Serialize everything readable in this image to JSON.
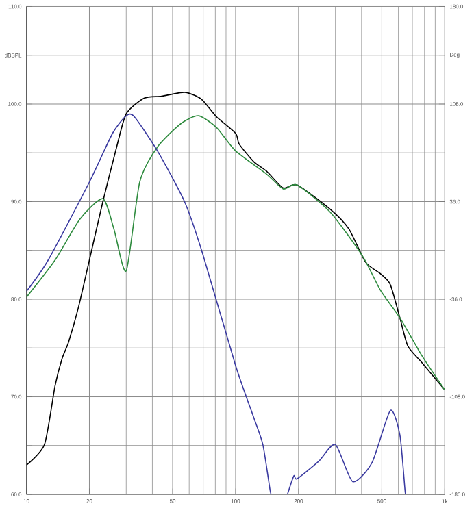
{
  "chart_data": {
    "type": "line",
    "log": "x",
    "grid": true,
    "line_style": "solid",
    "marker": "none",
    "xlim": [
      10,
      1000
    ],
    "xticks": [
      10,
      20,
      50,
      100,
      200,
      500,
      {
        "value": 1000,
        "label": "1k"
      }
    ],
    "ylim": [
      60,
      110
    ],
    "yticks": [
      {
        "value": 60,
        "label": "60.0"
      },
      {
        "value": 65,
        "label": null
      },
      {
        "value": 70,
        "label": "70.0"
      },
      {
        "value": 75,
        "label": null
      },
      {
        "value": 80,
        "label": "80.0"
      },
      {
        "value": 85,
        "label": null
      },
      {
        "value": 90,
        "label": "90.0"
      },
      {
        "value": 95,
        "label": null
      },
      {
        "value": 100,
        "label": "100.0"
      },
      {
        "value": 105,
        "label": "dBSPL"
      },
      {
        "value": 110,
        "label": "110.0"
      }
    ],
    "y2lim": [
      -180,
      180
    ],
    "y2ticks": [
      {
        "value": -180,
        "label": "-180.0"
      },
      {
        "value": -108,
        "label": "-108.0"
      },
      {
        "value": -36,
        "label": "-36.0"
      },
      {
        "value": 36,
        "label": "36.0"
      },
      {
        "value": 108,
        "label": "108.0"
      },
      {
        "value": 144,
        "label": "Deg"
      },
      {
        "value": 180,
        "label": "180.0"
      }
    ],
    "series": [
      {
        "color": "#000000",
        "x": [
          10,
          12.2,
          13.7,
          14.8,
          15.9,
          17.7,
          20,
          23.2,
          27,
          30,
          36.5,
          44.3,
          57,
          68.6,
          81,
          100,
          104,
          122,
          141,
          169,
          197,
          284,
          348,
          418,
          493,
          549,
          610,
          666,
          778,
          1000
        ],
        "values": [
          63.0,
          65.1,
          71.1,
          73.9,
          75.6,
          79.1,
          84.0,
          90.0,
          95.6,
          99.0,
          100.6,
          100.8,
          101.2,
          100.5,
          98.7,
          97.0,
          95.9,
          94.1,
          93.1,
          91.4,
          91.7,
          89.2,
          87.2,
          83.8,
          82.6,
          81.5,
          78.1,
          75.2,
          73.5,
          70.7
        ]
      },
      {
        "color": "#2e8b3e",
        "x": [
          10,
          13.7,
          18,
          23.2,
          26.2,
          30,
          34.8,
          42.3,
          54.8,
          66.5,
          81,
          100,
          141,
          169,
          197,
          284,
          405,
          493,
          610,
          778,
          1000
        ],
        "values": [
          80.2,
          84.0,
          88.2,
          90.3,
          87.2,
          82.9,
          92.0,
          95.6,
          98.0,
          98.8,
          97.6,
          95.2,
          92.8,
          91.3,
          91.7,
          88.9,
          84.4,
          80.9,
          78.1,
          74.2,
          70.7
        ]
      },
      {
        "color": "#3a3aa0",
        "x": [
          10,
          12.7,
          20,
          25.8,
          30,
          32.8,
          42.3,
          57,
          69.5,
          100,
          122,
          135,
          146,
          148,
          160,
          177,
          190,
          197,
          250,
          300,
          363,
          450,
          549,
          610,
          645,
          650
        ],
        "values": [
          80.8,
          84.0,
          92.0,
          97.0,
          98.8,
          98.7,
          95.2,
          90.0,
          84.7,
          73.2,
          67.9,
          65.1,
          60.5,
          60.0,
          null,
          60.0,
          61.9,
          61.6,
          63.4,
          65.1,
          61.3,
          63.3,
          68.6,
          66.1,
          60.5,
          60.0
        ]
      }
    ]
  }
}
